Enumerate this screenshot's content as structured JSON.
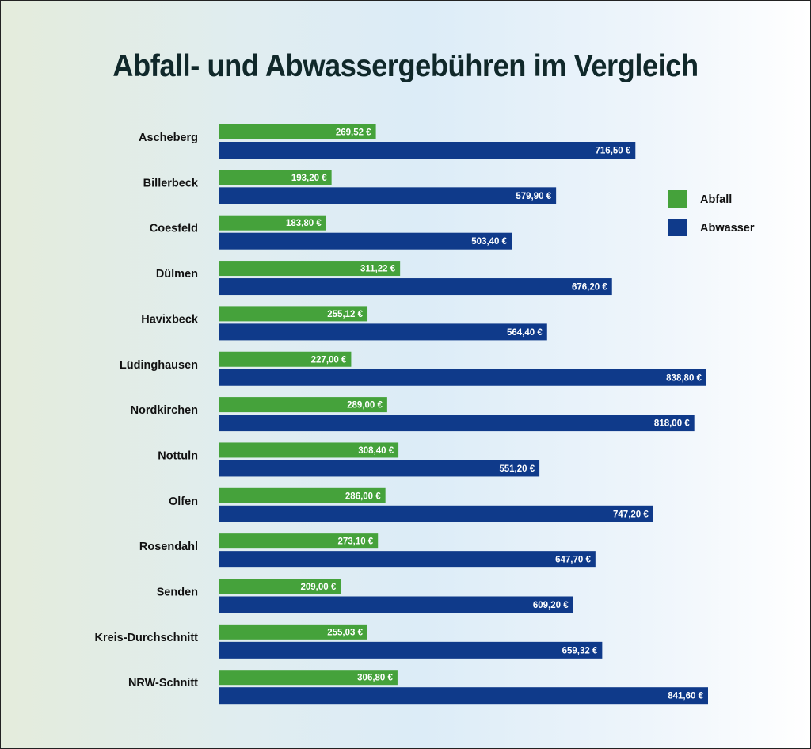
{
  "chart_data": {
    "type": "bar",
    "orientation": "horizontal",
    "title": "Abfall- und Abwassergebühren im Vergleich",
    "categories": [
      "Ascheberg",
      "Billerbeck",
      "Coesfeld",
      "Dülmen",
      "Havixbeck",
      "Lüdinghausen",
      "Nordkirchen",
      "Nottuln",
      "Olfen",
      "Rosendahl",
      "Senden",
      "Kreis-Durchschnitt",
      "NRW-Schnitt"
    ],
    "series": [
      {
        "name": "Abfall",
        "color": "#45a23b",
        "values": [
          269.52,
          193.2,
          183.8,
          311.22,
          255.12,
          227.0,
          289.0,
          308.4,
          286.0,
          273.1,
          209.0,
          255.03,
          306.8
        ],
        "labels": [
          "269,52 €",
          "193,20 €",
          "183,80 €",
          "311,22 €",
          "255,12 €",
          "227,00 €",
          "289,00 €",
          "308,40 €",
          "286,00 €",
          "273,10 €",
          "209,00 €",
          "255,03 €",
          "306,80 €"
        ]
      },
      {
        "name": "Abwasser",
        "color": "#0f3a8a",
        "values": [
          716.5,
          579.9,
          503.4,
          676.2,
          564.4,
          838.8,
          818.0,
          551.2,
          747.2,
          647.7,
          609.2,
          659.32,
          841.6
        ],
        "labels": [
          "716,50 €",
          "579,90 €",
          "503,40 €",
          "676,20 €",
          "564,40 €",
          "838,80 €",
          "818,00 €",
          "551,20 €",
          "747,20 €",
          "647,70 €",
          "609,20 €",
          "659,32 €",
          "841,60 €"
        ]
      }
    ],
    "legend_position": "top-right",
    "grid": false,
    "xlim": [
      0,
      850
    ]
  }
}
